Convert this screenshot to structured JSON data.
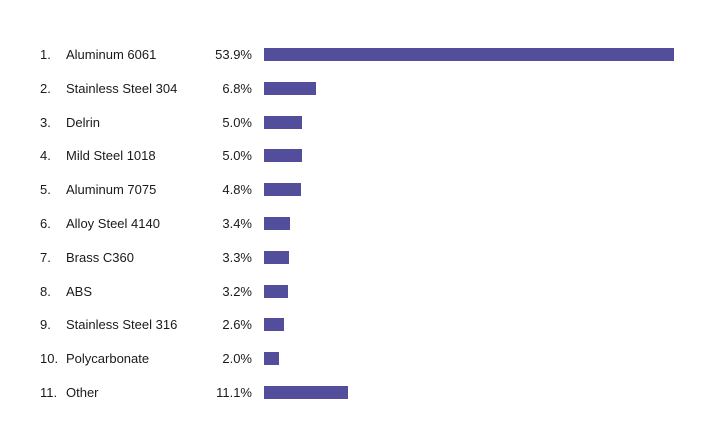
{
  "chart_data": {
    "type": "bar",
    "orientation": "horizontal",
    "title": "",
    "xlabel": "",
    "ylabel": "",
    "xlim": [
      0,
      53.9
    ],
    "grid": false,
    "legend": "none",
    "bar_color": "#524e9b",
    "ranks": [
      "1.",
      "2.",
      "3.",
      "4.",
      "5.",
      "6.",
      "7.",
      "8.",
      "9.",
      "10.",
      "11."
    ],
    "categories": [
      "Aluminum 6061",
      "Stainless Steel 304",
      "Delrin",
      "Mild Steel 1018",
      "Aluminum 7075",
      "Alloy Steel 4140",
      "Brass C360",
      "ABS",
      "Stainless Steel 316",
      "Polycarbonate",
      "Other"
    ],
    "values": [
      53.9,
      6.8,
      5.0,
      5.0,
      4.8,
      3.4,
      3.3,
      3.2,
      2.6,
      2.0,
      11.1
    ],
    "value_labels": [
      "53.9%",
      "6.8%",
      "5.0%",
      "5.0%",
      "4.8%",
      "3.4%",
      "3.3%",
      "3.2%",
      "2.6%",
      "2.0%",
      "11.1%"
    ]
  }
}
